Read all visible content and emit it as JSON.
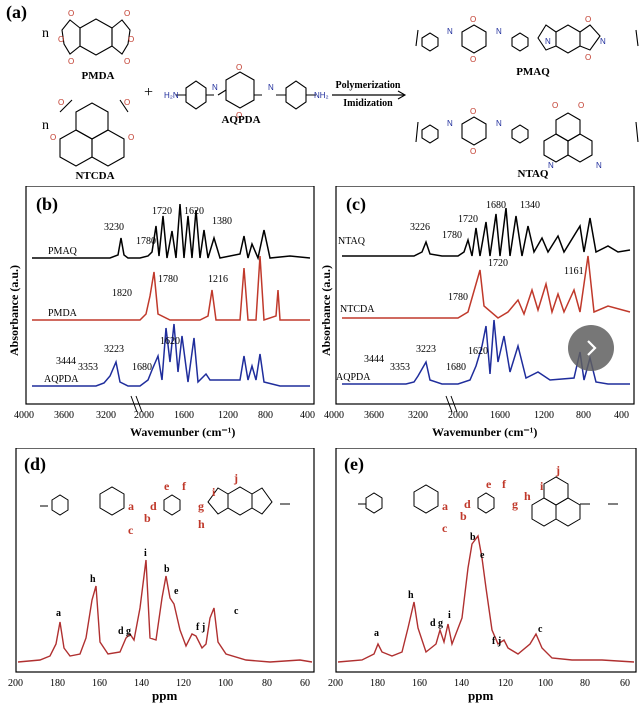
{
  "panel_a": {
    "label": "(a)",
    "monomer1": "PMDA",
    "monomer2": "NTCDA",
    "diamine": "AQPDA",
    "n": "n",
    "plus": "+",
    "arrow_top": "Polymerization",
    "arrow_bottom": "Imidization",
    "product1": "PMAQ",
    "product2": "NTAQ"
  },
  "ftir_b": {
    "label": "(b)",
    "xlabel": "Wavemunber (cm⁻¹)",
    "ylabel": "Absorbance (a.u.)",
    "xticks": [
      "4000",
      "3600",
      "3200",
      "2000",
      "1600",
      "1200",
      "800",
      "400"
    ],
    "traces": [
      {
        "name": "PMAQ",
        "color": "#000000",
        "peaks": [
          "3230",
          "1780",
          "1720",
          "1620",
          "1380"
        ]
      },
      {
        "name": "PMDA",
        "color": "#c0392b",
        "peaks": [
          "1820",
          "1780",
          "1216"
        ]
      },
      {
        "name": "AQPDA",
        "color": "#1f2d9c",
        "peaks": [
          "3444",
          "3353",
          "3223",
          "1680",
          "1620"
        ]
      }
    ]
  },
  "ftir_c": {
    "label": "(c)",
    "xlabel": "Wavemunber (cm⁻¹)",
    "ylabel": "Absorbance (a.u.)",
    "xticks": [
      "4000",
      "3600",
      "3200",
      "2000",
      "1600",
      "1200",
      "800",
      "400"
    ],
    "traces": [
      {
        "name": "NTAQ",
        "color": "#000000",
        "peaks": [
          "3226",
          "1780",
          "1720",
          "1680",
          "1340"
        ]
      },
      {
        "name": "NTCDA",
        "color": "#c0392b",
        "peaks": [
          "1780",
          "1720",
          "1161"
        ]
      },
      {
        "name": "AQPDA",
        "color": "#1f2d9c",
        "peaks": [
          "3444",
          "3353",
          "3223",
          "1680",
          "1620"
        ]
      }
    ]
  },
  "nmr_d": {
    "label": "(d)",
    "xlabel": "ppm",
    "xticks": [
      "200",
      "180",
      "160",
      "140",
      "120",
      "100",
      "80",
      "60"
    ],
    "peaks": [
      "a",
      "h",
      "d g",
      "i",
      "b",
      "e",
      "f j",
      "c"
    ],
    "color": "#b03030"
  },
  "nmr_e": {
    "label": "(e)",
    "xlabel": "ppm",
    "xticks": [
      "200",
      "180",
      "160",
      "140",
      "120",
      "100",
      "80",
      "60"
    ],
    "peaks": [
      "a",
      "h",
      "d g",
      "i",
      "b",
      "e",
      "f j",
      "c"
    ],
    "color": "#b03030"
  }
}
